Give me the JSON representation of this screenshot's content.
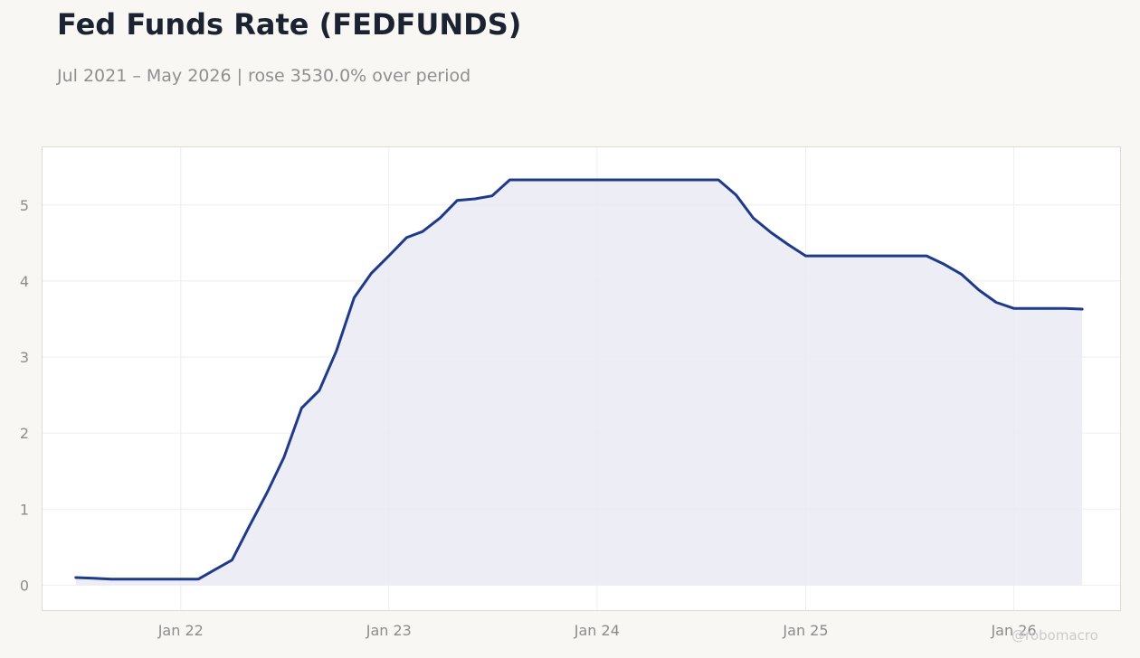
{
  "title": "Fed Funds Rate (FEDFUNDS)",
  "subtitle": "Jul 2021 – May 2026 | rose 3530.0% over period",
  "watermark": "@robomacro",
  "colors": {
    "line": "#1f3a8a",
    "area_fill": "#e9eaf3",
    "page_bg": "#f8f7f4",
    "plot_bg": "#ffffff",
    "grid": "#eeeeee",
    "frame": "#dddbd3",
    "tick_text": "#8c8c8c"
  },
  "chart_data": {
    "type": "area",
    "title": "Fed Funds Rate (FEDFUNDS)",
    "subtitle": "Jul 2021 – May 2026 | rose 3530.0% over period",
    "xlabel": "",
    "ylabel": "",
    "x_ticks": [
      "Jan 22",
      "Jan 23",
      "Jan 24",
      "Jan 25",
      "Jan 26"
    ],
    "y_ticks": [
      0,
      1,
      2,
      3,
      4,
      5
    ],
    "ylim": [
      -0.34,
      5.77
    ],
    "xlim": [
      "2021-05-02",
      "2026-07-08"
    ],
    "grid": true,
    "legend": "none",
    "series": [
      {
        "x": [
          "2021-07",
          "2021-08",
          "2021-09",
          "2021-10",
          "2021-11",
          "2021-12",
          "2022-01",
          "2022-02",
          "2022-03",
          "2022-04",
          "2022-05",
          "2022-06",
          "2022-07",
          "2022-08",
          "2022-09",
          "2022-10",
          "2022-11",
          "2022-12",
          "2023-01",
          "2023-02",
          "2023-03",
          "2023-04",
          "2023-05",
          "2023-06",
          "2023-07",
          "2023-08",
          "2023-09",
          "2023-10",
          "2023-11",
          "2023-12",
          "2024-01",
          "2024-02",
          "2024-03",
          "2024-04",
          "2024-05",
          "2024-06",
          "2024-07",
          "2024-08",
          "2024-09",
          "2024-10",
          "2024-11",
          "2024-12",
          "2025-01",
          "2025-02",
          "2025-03",
          "2025-04",
          "2025-05",
          "2025-06",
          "2025-07",
          "2025-08",
          "2025-09",
          "2025-10",
          "2025-11",
          "2025-12",
          "2026-01",
          "2026-02",
          "2026-03",
          "2026-04",
          "2026-05"
        ],
        "values": [
          0.1,
          0.09,
          0.08,
          0.08,
          0.08,
          0.08,
          0.08,
          0.08,
          0.2,
          0.33,
          0.77,
          1.21,
          1.68,
          2.33,
          2.56,
          3.08,
          3.78,
          4.1,
          4.33,
          4.57,
          4.65,
          4.83,
          5.06,
          5.08,
          5.12,
          5.33,
          5.33,
          5.33,
          5.33,
          5.33,
          5.33,
          5.33,
          5.33,
          5.33,
          5.33,
          5.33,
          5.33,
          5.33,
          5.13,
          4.83,
          4.64,
          4.48,
          4.33,
          4.33,
          4.33,
          4.33,
          4.33,
          4.33,
          4.33,
          4.33,
          4.22,
          4.09,
          3.88,
          3.72,
          3.64,
          3.64,
          3.64,
          3.64,
          3.63
        ]
      }
    ]
  }
}
